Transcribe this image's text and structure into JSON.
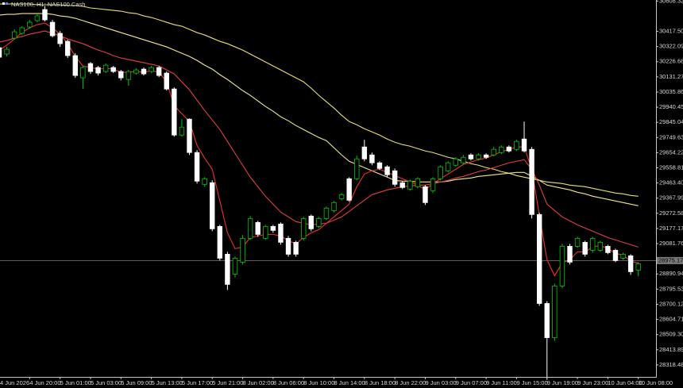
{
  "chart_data": {
    "type": "candlestick",
    "title": "NAS100, H1:  NAS100 Cash",
    "categories": [
      "4 Jun 2026",
      null,
      null,
      null,
      "4 Jun 20:00",
      null,
      null,
      null,
      "5 Jun 01:00",
      null,
      null,
      null,
      "5 Jun 03:00",
      null,
      null,
      null,
      "5 Jun 09:00",
      null,
      null,
      null,
      "5 Jun 13:00",
      null,
      null,
      null,
      "5 Jun 17:00",
      null,
      null,
      null,
      "5 Jun 21:00",
      null,
      null,
      null,
      "8 Jun 02:00",
      null,
      null,
      null,
      "8 Jun 06:00",
      null,
      null,
      null,
      "8 Jun 10:00",
      null,
      null,
      null,
      "8 Jun 14:00",
      null,
      null,
      null,
      "8 Jun 18:00",
      null,
      null,
      null,
      "8 Jun 22:00",
      null,
      null,
      null,
      "9 Jun 03:00",
      null,
      null,
      null,
      "9 Jun 07:00",
      null,
      null,
      null,
      "9 Jun 11:00",
      null,
      null,
      null,
      "9 Jun 15:00",
      null,
      null,
      null,
      "9 Jun 19:00",
      null,
      null,
      null,
      "9 Jun 23:00",
      null,
      null,
      null,
      "10 Jun 04:00",
      null,
      null,
      null,
      "10 Jun 08:00"
    ],
    "open": [
      30315,
      30275,
      30375,
      30405,
      30445,
      30485,
      30555,
      30475,
      30405,
      30355,
      30265,
      30125,
      30215,
      30190,
      30165,
      30190,
      30165,
      30115,
      30155,
      30180,
      30165,
      30190,
      30155,
      30055,
      29765,
      29865,
      29655,
      29455,
      29465,
      29190,
      29015,
      28890,
      28965,
      29115,
      29215,
      29115,
      29190,
      29205,
      29115,
      29090,
      29115,
      29255,
      29190,
      29240,
      29290,
      29365,
      29490,
      29490,
      29690,
      29640,
      29590,
      29565,
      29540,
      29465,
      29425,
      29440,
      29440,
      29415,
      29490,
      29540,
      29575,
      29590,
      29640,
      29615,
      29640,
      29640,
      29655,
      29690,
      29675,
      29740,
      29675,
      29265,
      28705,
      28490,
      28815,
      29065,
      29065,
      29090,
      29040,
      29040,
      29065,
      29040,
      28990,
      29005,
      28915
    ],
    "high": [
      30330,
      30320,
      30430,
      30450,
      30490,
      30525,
      30575,
      30490,
      30420,
      30365,
      30280,
      30200,
      30225,
      30200,
      30215,
      30200,
      30175,
      30175,
      30185,
      30190,
      30200,
      30200,
      30165,
      30065,
      29865,
      29870,
      29670,
      29500,
      29480,
      29200,
      29030,
      29000,
      29135,
      29255,
      29225,
      29200,
      29200,
      29215,
      29130,
      29100,
      29250,
      29265,
      29250,
      29315,
      29350,
      29400,
      29500,
      29635,
      29735,
      29655,
      29600,
      29575,
      29555,
      29475,
      29485,
      29500,
      29450,
      29500,
      29575,
      29600,
      29625,
      29640,
      29650,
      29650,
      29650,
      29690,
      29700,
      29700,
      29735,
      29850,
      29690,
      29275,
      28720,
      28830,
      29080,
      29080,
      29125,
      29100,
      29125,
      29100,
      29075,
      29050,
      29025,
      29015,
      28965
    ],
    "low": [
      30230,
      30260,
      30365,
      30395,
      30435,
      30475,
      30480,
      30380,
      30320,
      30250,
      30125,
      30055,
      30150,
      30140,
      30155,
      30155,
      30110,
      30075,
      30145,
      30140,
      30155,
      30130,
      30045,
      29755,
      29755,
      29640,
      29460,
      29440,
      29160,
      28975,
      28790,
      28870,
      28950,
      29105,
      29125,
      29105,
      29150,
      29075,
      29000,
      29000,
      29100,
      29160,
      29180,
      29230,
      29280,
      29355,
      29345,
      29480,
      29600,
      29575,
      29545,
      29500,
      29440,
      29425,
      29415,
      29430,
      29325,
      29400,
      29480,
      29530,
      29565,
      29580,
      29605,
      29605,
      29615,
      29630,
      29645,
      29655,
      29665,
      29655,
      29240,
      28690,
      28225,
      28470,
      28800,
      28950,
      29055,
      29000,
      29025,
      29030,
      29015,
      28965,
      28980,
      28885,
      28875
    ],
    "close": [
      30255,
      30305,
      30415,
      30440,
      30475,
      30515,
      30490,
      30390,
      30340,
      30265,
      30140,
      30190,
      30165,
      30155,
      30205,
      30165,
      30125,
      30165,
      30175,
      30150,
      30190,
      30140,
      30055,
      29765,
      29815,
      29655,
      29475,
      29490,
      29175,
      28990,
      28825,
      28990,
      29115,
      29240,
      29140,
      29190,
      29165,
      29090,
      29015,
      29015,
      29240,
      29175,
      29240,
      29305,
      29340,
      29390,
      29355,
      29615,
      29615,
      29590,
      29555,
      29515,
      29455,
      29435,
      29475,
      29490,
      29340,
      29490,
      29565,
      29590,
      29615,
      29625,
      29615,
      29640,
      29625,
      29675,
      29690,
      29665,
      29725,
      29665,
      29265,
      28705,
      28490,
      28815,
      29065,
      28965,
      29115,
      29015,
      29115,
      29090,
      29025,
      28975,
      29015,
      28905,
      28955
    ],
    "bull_color": "#00c800",
    "bear_color": "#ffffff",
    "series": [
      {
        "color": "#e8e070",
        "values": [
          30590,
          30590,
          30590,
          30590,
          30590,
          30585,
          30585,
          30585,
          30585,
          30580,
          30580,
          30575,
          30565,
          30560,
          30555,
          30550,
          30545,
          30535,
          30530,
          30515,
          30505,
          30490,
          30475,
          30460,
          30450,
          30430,
          30410,
          30395,
          30375,
          30355,
          30340,
          30320,
          30300,
          30275,
          30250,
          30225,
          30200,
          30175,
          30150,
          30125,
          30100,
          30060,
          30015,
          29975,
          29935,
          29890,
          29850,
          29830,
          29805,
          29785,
          29765,
          29740,
          29720,
          29705,
          29695,
          29680,
          29665,
          29655,
          29640,
          29625,
          29615,
          29600,
          29585,
          29575,
          29560,
          29550,
          29535,
          29525,
          29510,
          29500,
          29490,
          29480,
          29470,
          29465,
          29460,
          29450,
          29445,
          29440,
          29430,
          29420,
          29410,
          29400,
          29395,
          29385,
          29380
        ]
      },
      {
        "color": "#f0e88a",
        "values": [
          30520,
          30525,
          30525,
          30530,
          30530,
          30530,
          30530,
          30525,
          30515,
          30510,
          30500,
          30485,
          30470,
          30455,
          30440,
          30425,
          30410,
          30395,
          30380,
          30365,
          30350,
          30335,
          30320,
          30300,
          30280,
          30260,
          30235,
          30205,
          30180,
          30145,
          30115,
          30080,
          30045,
          30015,
          29980,
          29945,
          29915,
          29880,
          29855,
          29825,
          29800,
          29775,
          29750,
          29730,
          29685,
          29640,
          29600,
          29580,
          29560,
          29540,
          29520,
          29500,
          29480,
          29475,
          29475,
          29470,
          29470,
          29470,
          29470,
          29475,
          29485,
          29490,
          29495,
          29505,
          29510,
          29515,
          29520,
          29525,
          29530,
          29530,
          29505,
          29480,
          29450,
          29440,
          29430,
          29420,
          29405,
          29395,
          29380,
          29370,
          29360,
          29350,
          29340,
          29330,
          29320
        ]
      },
      {
        "color": "#e04040",
        "values": [
          30350,
          30360,
          30375,
          30385,
          30400,
          30410,
          30420,
          30405,
          30390,
          30370,
          30355,
          30340,
          30320,
          30300,
          30285,
          30265,
          30250,
          30240,
          30230,
          30220,
          30210,
          30200,
          30175,
          30150,
          30100,
          30050,
          29985,
          29920,
          29860,
          29800,
          29725,
          29650,
          29575,
          29500,
          29440,
          29380,
          29330,
          29280,
          29250,
          29220,
          29210,
          29200,
          29205,
          29210,
          29230,
          29250,
          29285,
          29320,
          29355,
          29390,
          29405,
          29420,
          29430,
          29440,
          29445,
          29450,
          29450,
          29460,
          29470,
          29480,
          29495,
          29505,
          29520,
          29535,
          29545,
          29560,
          29575,
          29590,
          29600,
          29610,
          29550,
          29450,
          29330,
          29290,
          29250,
          29225,
          29200,
          29180,
          29160,
          29140,
          29120,
          29105,
          29090,
          29075,
          29060
        ]
      },
      {
        "color": "#f03030",
        "values": [
          30300,
          30330,
          30370,
          30410,
          30440,
          30460,
          30470,
          30440,
          30400,
          30340,
          30260,
          30200,
          30190,
          30180,
          30185,
          30180,
          30160,
          30160,
          30165,
          30160,
          30170,
          30160,
          30100,
          29950,
          29900,
          29850,
          29700,
          29620,
          29550,
          29350,
          29150,
          29050,
          29060,
          29120,
          29130,
          29140,
          29140,
          29130,
          29100,
          29080,
          29120,
          29150,
          29170,
          29210,
          29250,
          29290,
          29330,
          29440,
          29520,
          29540,
          29550,
          29530,
          29510,
          29490,
          29470,
          29450,
          29420,
          29460,
          29490,
          29520,
          29550,
          29580,
          29595,
          29610,
          29620,
          29640,
          29660,
          29675,
          29690,
          29690,
          29550,
          29260,
          28980,
          28880,
          28960,
          28980,
          29030,
          29030,
          29060,
          29070,
          29050,
          29020,
          29010,
          28970,
          28960
        ]
      }
    ],
    "ylim": [
      28243,
      30615
    ],
    "yticks": [
      {
        "value": 30608.32,
        "label": "30608.32"
      },
      {
        "value": 30417.5,
        "label": "30417.50"
      },
      {
        "value": 30322.09,
        "label": "30322.09"
      },
      {
        "value": 30226.68,
        "label": "30226.68"
      },
      {
        "value": 30131.27,
        "label": "30131.27"
      },
      {
        "value": 30035.86,
        "label": "30035.86"
      },
      {
        "value": 29940.45,
        "label": "29940.45"
      },
      {
        "value": 29845.04,
        "label": "29845.04"
      },
      {
        "value": 29749.63,
        "label": "29749.63"
      },
      {
        "value": 29654.22,
        "label": "29654.22"
      },
      {
        "value": 29558.81,
        "label": "29558.81"
      },
      {
        "value": 29463.4,
        "label": "29463.40"
      },
      {
        "value": 29367.99,
        "label": "29367.99"
      },
      {
        "value": 29272.58,
        "label": "29272.58"
      },
      {
        "value": 29177.17,
        "label": "29177.17"
      },
      {
        "value": 29081.76,
        "label": "29081.76"
      },
      {
        "value": 28890.94,
        "label": "28890.94"
      },
      {
        "value": 28795.53,
        "label": "28795.53"
      },
      {
        "value": 28700.12,
        "label": "28700.12"
      },
      {
        "value": 28604.71,
        "label": "28604.71"
      },
      {
        "value": 28509.3,
        "label": "28509.30"
      },
      {
        "value": 28413.89,
        "label": "28413.89"
      },
      {
        "value": 28318.48,
        "label": "28318.48"
      }
    ],
    "bid": 28975.17,
    "bid_color": "#7a7a7a"
  }
}
